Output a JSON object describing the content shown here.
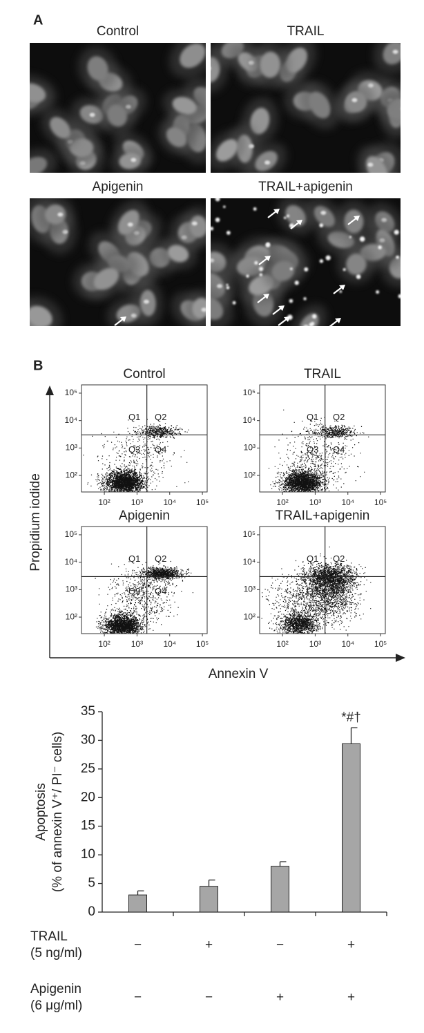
{
  "panel_a": {
    "label": "A",
    "images": [
      {
        "title": "Control"
      },
      {
        "title": "TRAIL"
      },
      {
        "title": "Apigenin"
      },
      {
        "title": "TRAIL+apigenin"
      }
    ]
  },
  "panel_b": {
    "label": "B",
    "y_axis_label": "Propidium iodide",
    "x_axis_label": "Annexin V",
    "plots": [
      {
        "title": "Control"
      },
      {
        "title": "TRAIL"
      },
      {
        "title": "Apigenin"
      },
      {
        "title": "TRAIL+apigenin"
      }
    ],
    "quadrants": [
      "Q1",
      "Q2",
      "Q3",
      "Q4"
    ],
    "scale": "log",
    "xlim": [
      20,
      140000
    ],
    "ylim": [
      25,
      200000
    ],
    "ticks": [
      {
        "value": 100,
        "label": "10²"
      },
      {
        "value": 1000,
        "label": "10³"
      },
      {
        "value": 10000,
        "label": "10⁴"
      },
      {
        "value": 100000,
        "label": "10⁵"
      }
    ],
    "x_gate": 2000,
    "y_gate": 3000
  },
  "chart_data": {
    "type": "bar",
    "ylabel": [
      "Apoptosis",
      "(% of annexin V⁺/ PI⁻ cells)"
    ],
    "values": [
      3,
      4.5,
      8,
      29.4
    ],
    "errors": [
      0.7,
      1.1,
      0.8,
      2.8
    ],
    "value_annotations": [
      null,
      null,
      null,
      "*#†"
    ],
    "color": "#a6a6a6",
    "ylim": [
      0,
      35
    ],
    "yticks": [
      0,
      5,
      10,
      15,
      20,
      25,
      30,
      35
    ],
    "treatment_rows": [
      {
        "name": "TRAIL",
        "dose": "(5 ng/ml)",
        "signs": [
          "−",
          "+",
          "−",
          "+"
        ]
      },
      {
        "name": "Apigenin",
        "dose": "(6 μg/ml)",
        "signs": [
          "−",
          "−",
          "+",
          "+"
        ]
      }
    ]
  }
}
